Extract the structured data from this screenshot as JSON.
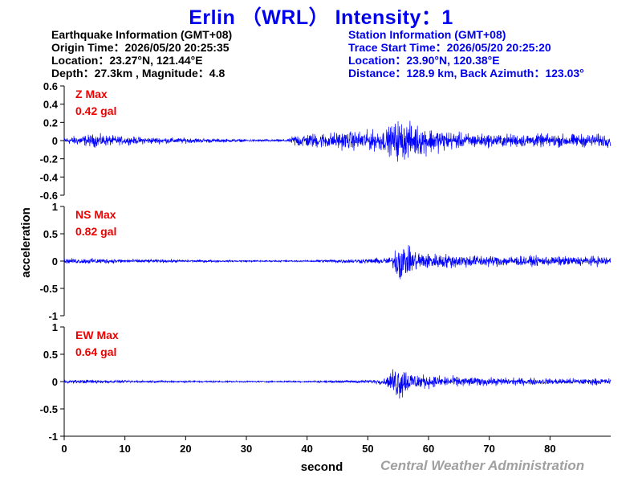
{
  "title": "Erlin （WRL） Intensity：1",
  "earthquake_info": {
    "header": "Earthquake Information  (GMT+08)",
    "origin_time": "Origin Time：2026/05/20 20:25:35",
    "location": "Location：23.27°N, 121.44°E",
    "depth_magnitude": "Depth：27.3km , Magnitude：4.8"
  },
  "station_info": {
    "header": "Station Information  (GMT+08)",
    "trace_start": "Trace Start Time：2026/05/20 20:25:20",
    "location": "Location：23.90°N, 120.38°E",
    "distance_azimuth": "Distance：128.9 km, Back Azimuth：123.03°"
  },
  "credit": "Central Weather Administration",
  "colors": {
    "trace": "#0000ff",
    "title": "#0000ee",
    "max_label": "#ee0000",
    "credit": "#a0a0a0"
  },
  "chart_data": {
    "type": "line",
    "xlabel": "second",
    "ylabel": "acceleration",
    "xlim": [
      0,
      90
    ],
    "x_ticks": [
      0,
      10,
      20,
      30,
      40,
      50,
      60,
      70,
      80
    ],
    "panels": [
      {
        "name": "Z",
        "label": "Z Max",
        "max_text": "0.42 gal",
        "max": 0.42,
        "ylim": [
          -0.6,
          0.6
        ],
        "y_ticks": [
          -0.6,
          -0.4,
          -0.2,
          0,
          0.2,
          0.4,
          0.6
        ],
        "y_tick_labels": [
          "-0.6",
          "-0.4",
          "-0.2",
          "0",
          "0.2",
          "0.4",
          "0.6"
        ],
        "envelope": [
          [
            0,
            0.05
          ],
          [
            5,
            0.1
          ],
          [
            10,
            0.06
          ],
          [
            20,
            0.04
          ],
          [
            30,
            0.02
          ],
          [
            37,
            0.02
          ],
          [
            38,
            0.1
          ],
          [
            45,
            0.13
          ],
          [
            50,
            0.15
          ],
          [
            53,
            0.17
          ],
          [
            55,
            0.32
          ],
          [
            57,
            0.26
          ],
          [
            60,
            0.2
          ],
          [
            65,
            0.12
          ],
          [
            70,
            0.1
          ],
          [
            80,
            0.1
          ],
          [
            90,
            0.1
          ]
        ]
      },
      {
        "name": "NS",
        "label": "NS Max",
        "max_text": "0.82 gal",
        "max": 0.82,
        "ylim": [
          -1,
          1
        ],
        "y_ticks": [
          -1,
          -0.5,
          0,
          0.5,
          1
        ],
        "y_tick_labels": [
          "-1",
          "-0.5",
          "0",
          "0.5",
          "1"
        ],
        "envelope": [
          [
            0,
            0.06
          ],
          [
            5,
            0.07
          ],
          [
            10,
            0.05
          ],
          [
            30,
            0.02
          ],
          [
            40,
            0.02
          ],
          [
            45,
            0.05
          ],
          [
            50,
            0.06
          ],
          [
            54,
            0.1
          ],
          [
            55,
            0.55
          ],
          [
            57,
            0.3
          ],
          [
            60,
            0.2
          ],
          [
            70,
            0.14
          ],
          [
            80,
            0.12
          ],
          [
            90,
            0.12
          ]
        ]
      },
      {
        "name": "EW",
        "label": "EW Max",
        "max_text": "0.64 gal",
        "max": 0.64,
        "ylim": [
          -1,
          1
        ],
        "y_ticks": [
          -1,
          -0.5,
          0,
          0.5,
          1
        ],
        "y_tick_labels": [
          "-1",
          "-0.5",
          "0",
          "0.5",
          "1"
        ],
        "envelope": [
          [
            0,
            0.04
          ],
          [
            5,
            0.05
          ],
          [
            10,
            0.03
          ],
          [
            30,
            0.02
          ],
          [
            40,
            0.02
          ],
          [
            45,
            0.03
          ],
          [
            50,
            0.04
          ],
          [
            53,
            0.08
          ],
          [
            55,
            0.5
          ],
          [
            57,
            0.25
          ],
          [
            60,
            0.15
          ],
          [
            70,
            0.1
          ],
          [
            80,
            0.08
          ],
          [
            90,
            0.08
          ]
        ]
      }
    ]
  }
}
